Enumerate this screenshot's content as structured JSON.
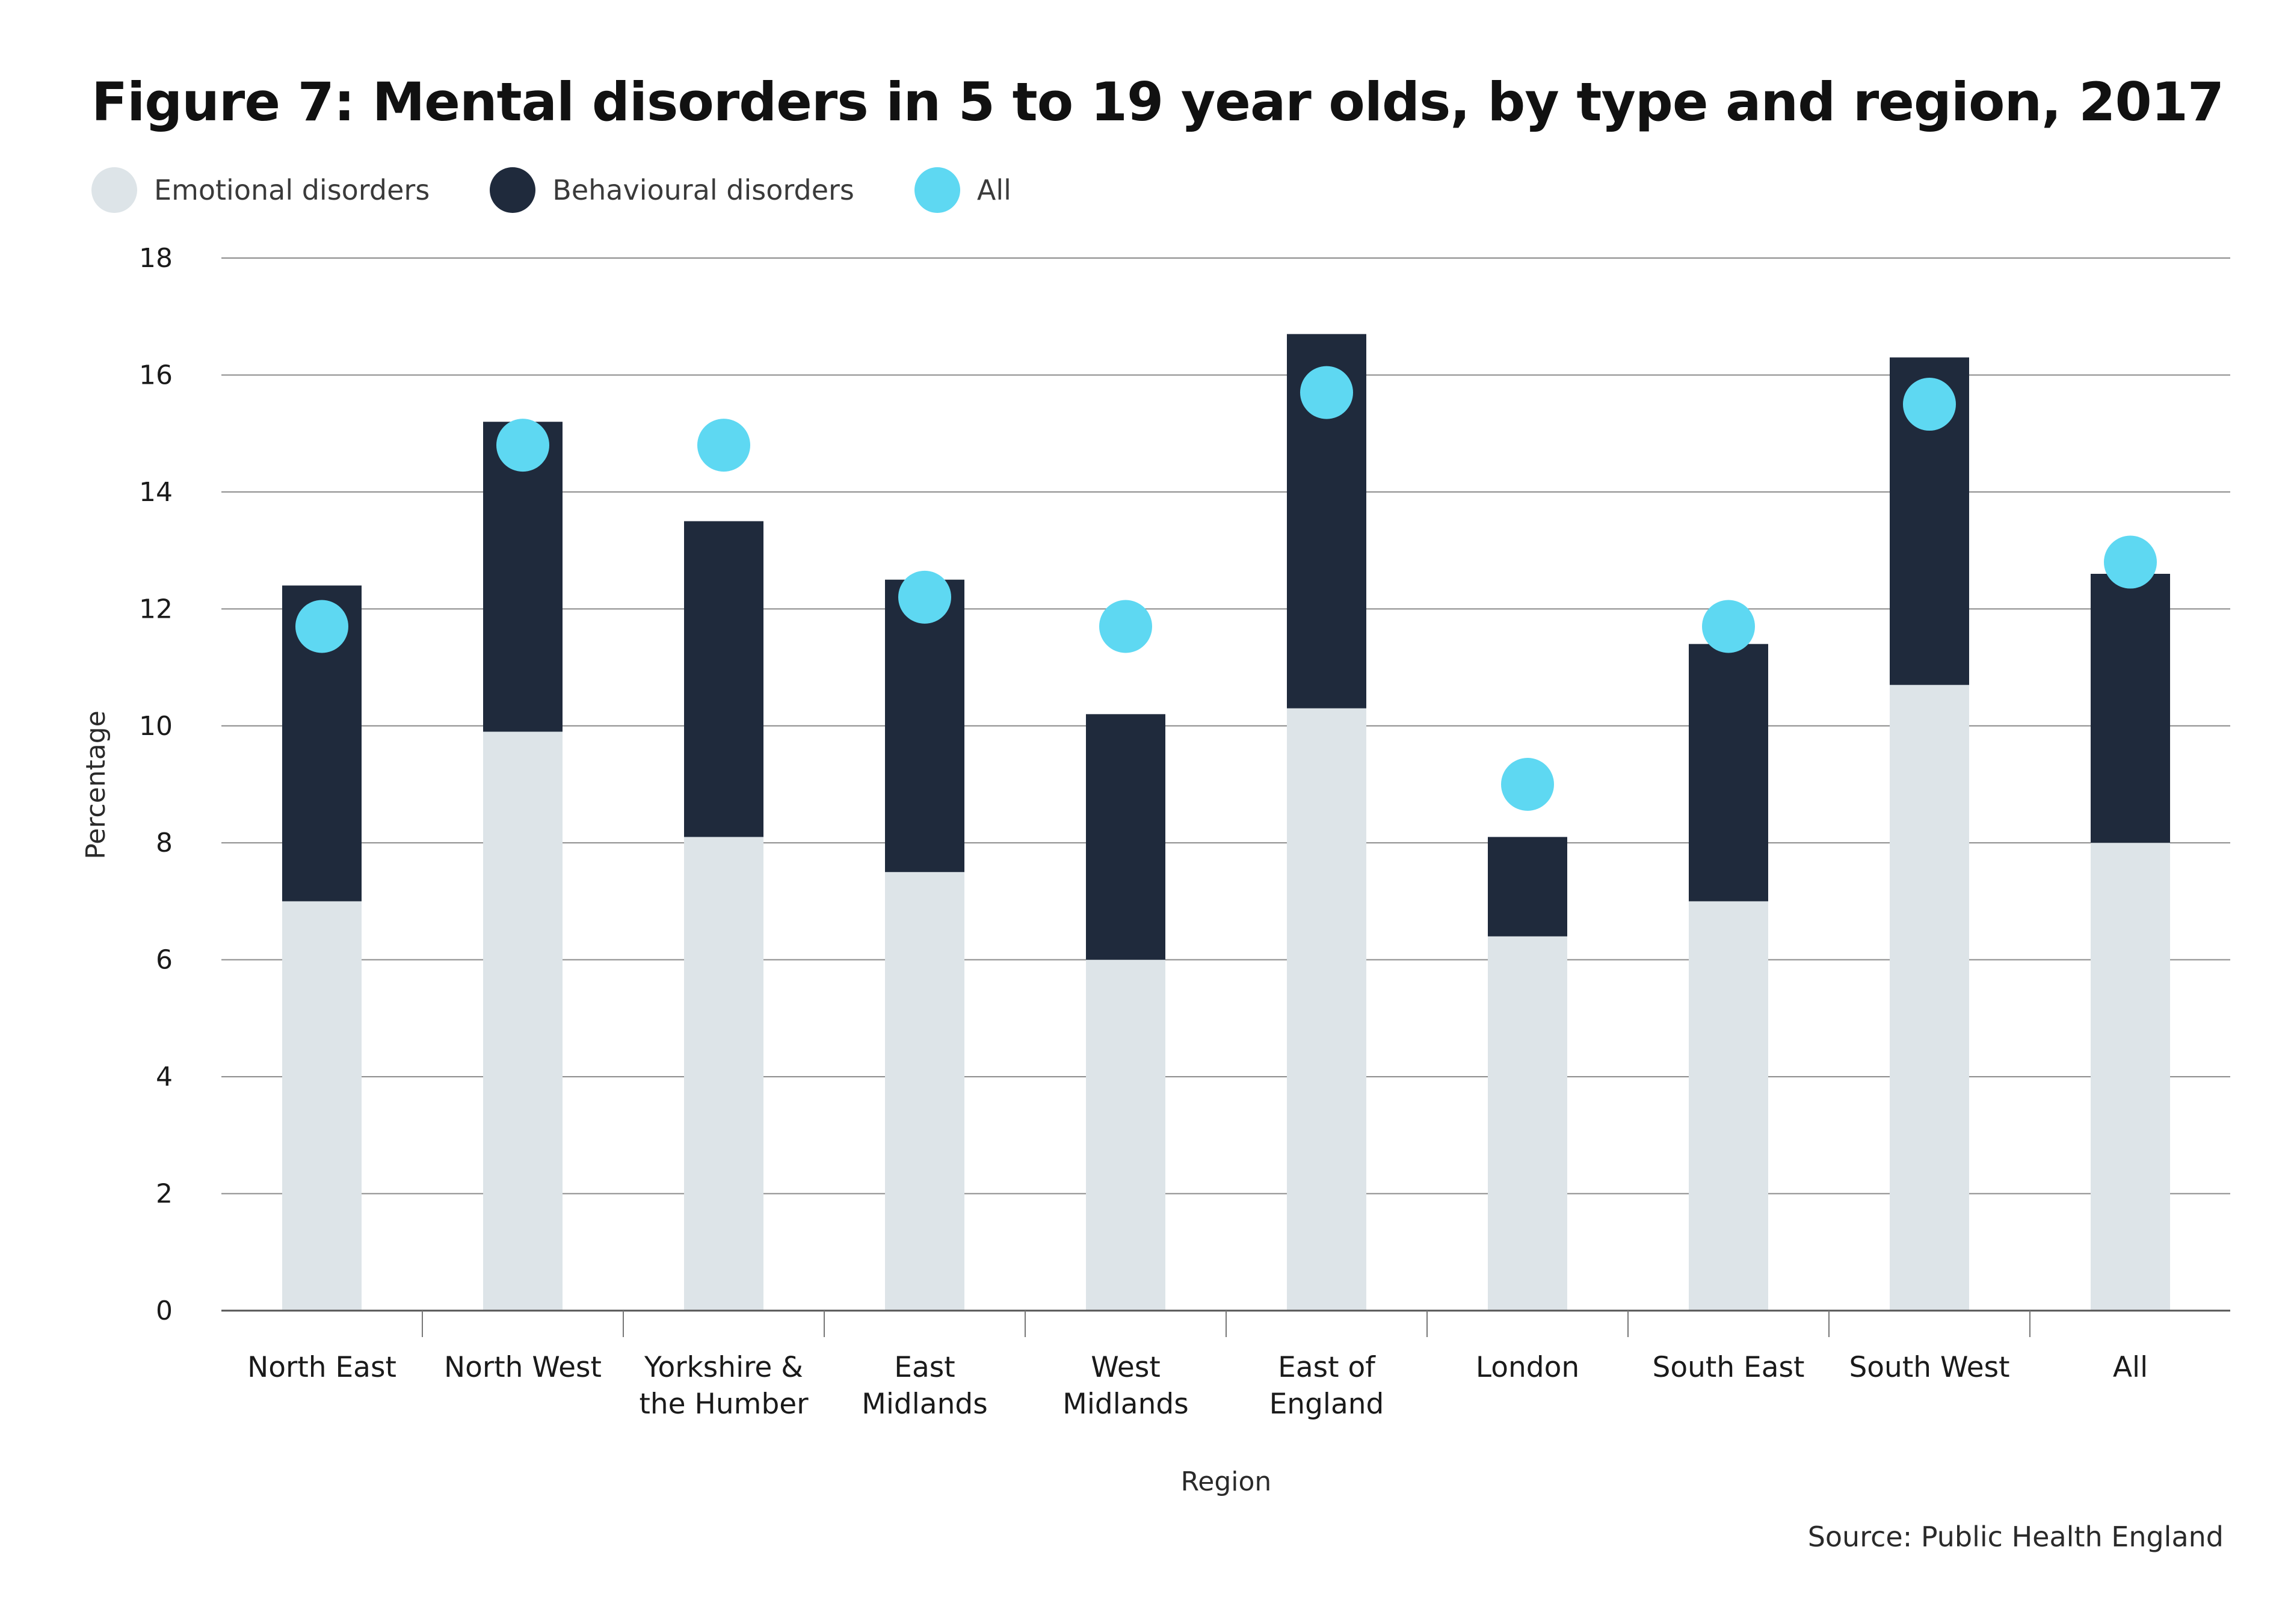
{
  "chart_data": {
    "type": "bar",
    "stacked": true,
    "title": "Figure 7: Mental disorders in 5 to 19 year olds, by type and region, 2017",
    "xlabel": "Region",
    "ylabel": "Percentage",
    "ylim": [
      0,
      18
    ],
    "yticks": [
      0,
      2,
      4,
      6,
      8,
      10,
      12,
      14,
      16,
      18
    ],
    "grid": true,
    "legend_position": "top-left",
    "categories": [
      [
        "North East"
      ],
      [
        "North West"
      ],
      [
        "Yorkshire &",
        "the Humber"
      ],
      [
        "East",
        "Midlands"
      ],
      [
        "West",
        "Midlands"
      ],
      [
        "East of",
        "England"
      ],
      [
        "London"
      ],
      [
        "South East"
      ],
      [
        "South West"
      ],
      [
        "All"
      ]
    ],
    "category_names": [
      "North East",
      "North West",
      "Yorkshire & the Humber",
      "East Midlands",
      "West Midlands",
      "East of England",
      "London",
      "South East",
      "South West",
      "All"
    ],
    "series": [
      {
        "name": "Emotional disorders",
        "kind": "bar",
        "color": "#dde4e8",
        "values": [
          7.0,
          9.9,
          8.1,
          7.5,
          6.0,
          10.3,
          6.4,
          7.0,
          10.7,
          8.0
        ]
      },
      {
        "name": "Behavioural disorders",
        "kind": "bar",
        "color": "#1f2a3c",
        "values": [
          5.4,
          5.3,
          5.4,
          5.0,
          4.2,
          6.4,
          1.7,
          4.4,
          5.6,
          4.6
        ]
      },
      {
        "name": "All",
        "kind": "dot",
        "color": "#5ed8f2",
        "values": [
          11.7,
          14.8,
          14.8,
          12.2,
          11.7,
          15.7,
          9.0,
          11.7,
          15.5,
          12.8
        ]
      }
    ],
    "source": "Source: Public Health England"
  }
}
